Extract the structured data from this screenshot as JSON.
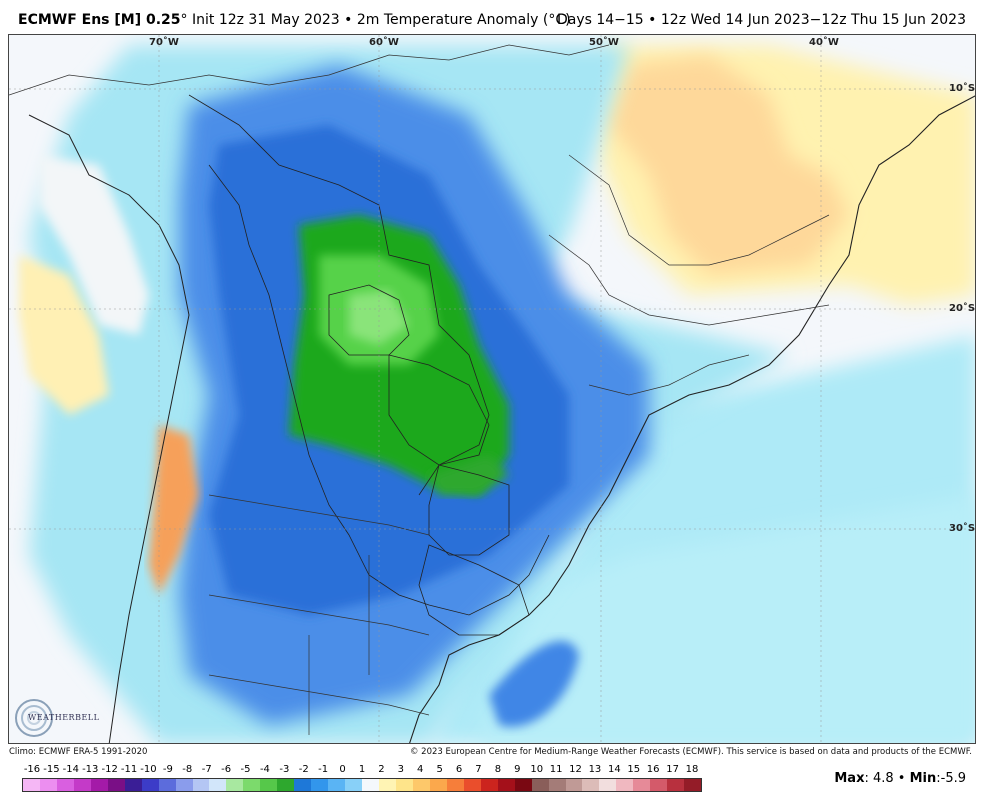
{
  "header": {
    "model": "ECMWF Ens [M] 0.25",
    "degree_mark": "°",
    "init": " Init 12z 31 May 2023 • 2m Temperature Anomaly (°C)",
    "valid": "Days 14−15 • 12z Wed 14 Jun 2023−12z Thu 15 Jun 2023"
  },
  "map": {
    "longitude_labels": [
      "70˚W",
      "60˚W",
      "50˚W",
      "40˚W"
    ],
    "latitude_labels": [
      "10˚S",
      "20˚S",
      "30˚S"
    ]
  },
  "footer": {
    "climo": "Climo: ECMWF ERA-5 1991-2020",
    "copyright": "© 2023 European Centre for Medium-Range Weather Forecasts (ECMWF). This service is based on data and products of the ECMWF."
  },
  "colorbar": {
    "ticks": [
      "-16",
      "-15",
      "-14",
      "-13",
      "-12",
      "-11",
      "-10",
      "-9",
      "-8",
      "-7",
      "-6",
      "-5",
      "-4",
      "-3",
      "-2",
      "-1",
      "0",
      "1",
      "2",
      "3",
      "4",
      "5",
      "6",
      "7",
      "8",
      "9",
      "10",
      "11",
      "12",
      "13",
      "14",
      "15",
      "16",
      "17",
      "18"
    ],
    "colors": [
      "#f5b7f5",
      "#ec8ef0",
      "#d95fe0",
      "#c43ac8",
      "#a41aa8",
      "#7a0f86",
      "#3a1e96",
      "#3c3cc8",
      "#5c6cdc",
      "#8a9cec",
      "#b4c6f4",
      "#d2e6fa",
      "#a8e8a0",
      "#7cda6c",
      "#56c84a",
      "#2ea82e",
      "#1e78d8",
      "#3296ec",
      "#5ab4f4",
      "#88d0f8",
      "#f4f8fc",
      "#fff4b4",
      "#fee48a",
      "#fdc86a",
      "#fba84c",
      "#f67e3a",
      "#ea4e2c",
      "#cc241e",
      "#a4101a",
      "#7a0812",
      "#8a5e5a",
      "#a47c78",
      "#c09a96",
      "#dcbcb8",
      "#f2dede",
      "#f0b8c0",
      "#e68a98",
      "#d45a6a",
      "#b8303e",
      "#941c28"
    ]
  },
  "stats": {
    "max_label": "Max",
    "max_value": ": 4.8",
    "sep": " • ",
    "min_label": "Min",
    "min_value": ":-5.9"
  },
  "logo": {
    "text": "WEATHERBELL"
  }
}
